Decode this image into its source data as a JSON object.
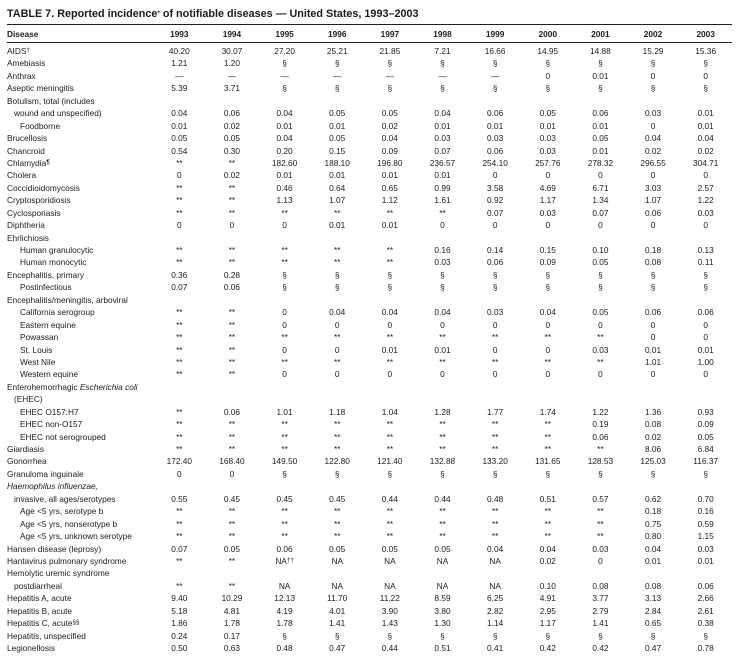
{
  "title": {
    "segments": [
      {
        "t": "TABLE 7. Reported incidence"
      },
      {
        "t": "*",
        "s": 1
      },
      {
        "t": " of notifiable diseases — United States, 1993–2003"
      }
    ]
  },
  "table": {
    "label_header": "Disease",
    "columns": [
      "1993",
      "1994",
      "1995",
      "1996",
      "1997",
      "1998",
      "1999",
      "2000",
      "2001",
      "2002",
      "2003"
    ],
    "rows": [
      {
        "segs": [
          {
            "t": "AIDS"
          },
          {
            "t": "†",
            "s": 1
          }
        ],
        "ind": 0,
        "cells": [
          "40.20",
          "30.07",
          "27.20",
          "25.21",
          "21.85",
          "7.21",
          "16.66",
          "14.95",
          "14.88",
          "15.29",
          "15.36"
        ]
      },
      {
        "label": "Amebiasis",
        "ind": 0,
        "cells": [
          "1.21",
          "1.20",
          "§",
          "§",
          "§",
          "§",
          "§",
          "§",
          "§",
          "§",
          "§"
        ]
      },
      {
        "label": "Anthrax",
        "ind": 0,
        "cells": [
          "—",
          "—",
          "—",
          "—",
          "—",
          "—",
          "—",
          "0",
          "0.01",
          "0",
          "0"
        ]
      },
      {
        "label": "Aseptic meningitis",
        "ind": 0,
        "cells": [
          "5.39",
          "3.71",
          "§",
          "§",
          "§",
          "§",
          "§",
          "§",
          "§",
          "§",
          "§"
        ]
      },
      {
        "label": "Botulism, total (includes",
        "ind": 0,
        "cells": null
      },
      {
        "label": "wound and unspecified)",
        "ind": 1,
        "cells": [
          "0.04",
          "0.06",
          "0.04",
          "0.05",
          "0.05",
          "0.04",
          "0.06",
          "0.05",
          "0.06",
          "0.03",
          "0.01"
        ]
      },
      {
        "label": "Foodborne",
        "ind": 2,
        "cells": [
          "0.01",
          "0.02",
          "0.01",
          "0.01",
          "0.02",
          "0.01",
          "0.01",
          "0.01",
          "0.01",
          "0",
          "0.01"
        ]
      },
      {
        "label": "Brucellosis",
        "ind": 0,
        "cells": [
          "0.05",
          "0.05",
          "0.04",
          "0.05",
          "0.04",
          "0.03",
          "0.03",
          "0.03",
          "0.05",
          "0.04",
          "0.04"
        ]
      },
      {
        "label": "Chancroid",
        "ind": 0,
        "cells": [
          "0.54",
          "0.30",
          "0.20",
          "0.15",
          "0.09",
          "0.07",
          "0.06",
          "0.03",
          "0.01",
          "0.02",
          "0.02"
        ]
      },
      {
        "segs": [
          {
            "t": "Chlamydia"
          },
          {
            "t": "¶",
            "s": 1,
            "b": 1
          }
        ],
        "ind": 0,
        "cells": [
          "**",
          "**",
          "182.60",
          "188.10",
          "196.80",
          "236.57",
          "254.10",
          "257.76",
          "278.32",
          "296.55",
          "304.71"
        ]
      },
      {
        "label": "Cholera",
        "ind": 0,
        "cells": [
          "0",
          "0.02",
          "0.01",
          "0.01",
          "0.01",
          "0.01",
          "0",
          "0",
          "0",
          "0",
          "0"
        ]
      },
      {
        "label": "Coccidioidomycosis",
        "ind": 0,
        "cells": [
          "**",
          "**",
          "0.46",
          "0.64",
          "0.65",
          "0.99",
          "3.58",
          "4.69",
          "6.71",
          "3.03",
          "2.57"
        ]
      },
      {
        "label": "Cryptosporidiosis",
        "ind": 0,
        "cells": [
          "**",
          "**",
          "1.13",
          "1.07",
          "1.12",
          "1.61",
          "0.92",
          "1.17",
          "1.34",
          "1.07",
          "1.22"
        ]
      },
      {
        "label": "Cyclosporiasis",
        "ind": 0,
        "cells": [
          "**",
          "**",
          "**",
          "**",
          "**",
          "**",
          "0.07",
          "0.03",
          "0.07",
          "0.06",
          "0.03"
        ]
      },
      {
        "label": "Diphtheria",
        "ind": 0,
        "cells": [
          "0",
          "0",
          "0",
          "0.01",
          "0.01",
          "0",
          "0",
          "0",
          "0",
          "0",
          "0"
        ]
      },
      {
        "label": "Ehrlichiosis",
        "ind": 0,
        "cells": null
      },
      {
        "label": "Human granulocytic",
        "ind": 2,
        "cells": [
          "**",
          "**",
          "**",
          "**",
          "**",
          "0.16",
          "0.14",
          "0.15",
          "0.10",
          "0.18",
          "0.13"
        ]
      },
      {
        "label": "Human monocytic",
        "ind": 2,
        "cells": [
          "**",
          "**",
          "**",
          "**",
          "**",
          "0.03",
          "0.06",
          "0.09",
          "0.05",
          "0.08",
          "0.11"
        ]
      },
      {
        "label": "Encephalitis, primary",
        "ind": 0,
        "cells": [
          "0.36",
          "0.28",
          "§",
          "§",
          "§",
          "§",
          "§",
          "§",
          "§",
          "§",
          "§"
        ]
      },
      {
        "label": "Postinfectious",
        "ind": 2,
        "cells": [
          "0.07",
          "0.06",
          "§",
          "§",
          "§",
          "§",
          "§",
          "§",
          "§",
          "§",
          "§"
        ]
      },
      {
        "label": "Encephalitis/meningitis, arboviral",
        "ind": 0,
        "cells": null
      },
      {
        "label": "California serogroup",
        "ind": 2,
        "cells": [
          "**",
          "**",
          "0",
          "0.04",
          "0.04",
          "0.04",
          "0.03",
          "0.04",
          "0.05",
          "0.06",
          "0.06"
        ]
      },
      {
        "label": "Eastern equine",
        "ind": 2,
        "cells": [
          "**",
          "**",
          "0",
          "0",
          "0",
          "0",
          "0",
          "0",
          "0",
          "0",
          "0"
        ]
      },
      {
        "label": "Powassan",
        "ind": 2,
        "cells": [
          "**",
          "**",
          "**",
          "**",
          "**",
          "**",
          "**",
          "**",
          "**",
          "0",
          "0"
        ]
      },
      {
        "label": "St. Louis",
        "ind": 2,
        "cells": [
          "**",
          "**",
          "0",
          "0",
          "0.01",
          "0.01",
          "0",
          "0",
          "0.03",
          "0.01",
          "0.01"
        ]
      },
      {
        "label": "West Nile",
        "ind": 2,
        "cells": [
          "**",
          "**",
          "**",
          "**",
          "**",
          "**",
          "**",
          "**",
          "**",
          "1.01",
          "1.00"
        ]
      },
      {
        "label": "Western equine",
        "ind": 2,
        "cells": [
          "**",
          "**",
          "0",
          "0",
          "0",
          "0",
          "0",
          "0",
          "0",
          "0",
          "0"
        ]
      },
      {
        "segs": [
          {
            "t": "Enterohemorrhagic "
          },
          {
            "t": "Escherichia coli",
            "i": 1
          }
        ],
        "ind": 0,
        "cells": null
      },
      {
        "label": "(EHEC)",
        "ind": 1,
        "cells": null
      },
      {
        "label": "EHEC O157:H7",
        "ind": 2,
        "cells": [
          "**",
          "0.06",
          "1.01",
          "1.18",
          "1.04",
          "1.28",
          "1.77",
          "1.74",
          "1.22",
          "1.36",
          "0.93"
        ]
      },
      {
        "label": "EHEC non-O157",
        "ind": 2,
        "cells": [
          "**",
          "**",
          "**",
          "**",
          "**",
          "**",
          "**",
          "**",
          "0.19",
          "0.08",
          "0.09"
        ]
      },
      {
        "label": "EHEC not serogrouped",
        "ind": 2,
        "cells": [
          "**",
          "**",
          "**",
          "**",
          "**",
          "**",
          "**",
          "**",
          "0.06",
          "0.02",
          "0.05"
        ]
      },
      {
        "label": "Giardiasis",
        "ind": 0,
        "cells": [
          "**",
          "**",
          "**",
          "**",
          "**",
          "**",
          "**",
          "**",
          "**",
          "8.06",
          "6.84"
        ]
      },
      {
        "label": "Gonorrhea",
        "ind": 0,
        "cells": [
          "172.40",
          "168.40",
          "149.50",
          "122.80",
          "121.40",
          "132.88",
          "133.20",
          "131.65",
          "128.53",
          "125.03",
          "116.37"
        ]
      },
      {
        "label": "Granuloma inguinale",
        "ind": 0,
        "cells": [
          "0",
          "0",
          "§",
          "§",
          "§",
          "§",
          "§",
          "§",
          "§",
          "§",
          "§"
        ]
      },
      {
        "segs": [
          {
            "t": "Haemophilus influenzae",
            "i": 1
          },
          {
            "t": ","
          }
        ],
        "ind": 0,
        "cells": null
      },
      {
        "label": "invasive, all ages/serotypes",
        "ind": 1,
        "cells": [
          "0.55",
          "0.45",
          "0.45",
          "0.45",
          "0.44",
          "0.44",
          "0.48",
          "0.51",
          "0.57",
          "0.62",
          "0.70"
        ]
      },
      {
        "label": "Age <5 yrs, serotype b",
        "ind": 2,
        "cells": [
          "**",
          "**",
          "**",
          "**",
          "**",
          "**",
          "**",
          "**",
          "**",
          "0.18",
          "0.16"
        ]
      },
      {
        "label": "Age <5 yrs, nonserotype b",
        "ind": 2,
        "cells": [
          "**",
          "**",
          "**",
          "**",
          "**",
          "**",
          "**",
          "**",
          "**",
          "0.75",
          "0.59"
        ]
      },
      {
        "label": "Age <5 yrs, unknown serotype",
        "ind": 2,
        "cells": [
          "**",
          "**",
          "**",
          "**",
          "**",
          "**",
          "**",
          "**",
          "**",
          "0.80",
          "1.15"
        ]
      },
      {
        "label": "Hansen disease (leprosy)",
        "ind": 0,
        "cells": [
          "0.07",
          "0.05",
          "0.06",
          "0.05",
          "0.05",
          "0.05",
          "0.04",
          "0.04",
          "0.03",
          "0.04",
          "0.03"
        ]
      },
      {
        "label": "Hantavirus pulmonary syndrome",
        "ind": 0,
        "cells": [
          "**",
          "**",
          {
            "t": "NA",
            "s": "††"
          },
          "NA",
          "NA",
          "NA",
          "NA",
          "0.02",
          "0",
          "0.01",
          "0.01"
        ]
      },
      {
        "label": "Hemolytic uremic syndrome",
        "ind": 0,
        "cells": null
      },
      {
        "label": "postdiarrheal",
        "ind": 1,
        "cells": [
          "**",
          "**",
          "NA",
          "NA",
          "NA",
          "NA",
          "NA",
          "0.10",
          "0.08",
          "0.08",
          "0.06"
        ]
      },
      {
        "label": "Hepatitis A, acute",
        "ind": 0,
        "cells": [
          "9.40",
          "10.29",
          "12.13",
          "11.70",
          "11.22",
          "8.59",
          "6.25",
          "4.91",
          "3.77",
          "3.13",
          "2.66"
        ]
      },
      {
        "label": "Hepatitis B, acute",
        "ind": 0,
        "cells": [
          "5.18",
          "4.81",
          "4.19",
          "4.01",
          "3.90",
          "3.80",
          "2.82",
          "2.95",
          "2.79",
          "2.84",
          "2.61"
        ]
      },
      {
        "segs": [
          {
            "t": "Hepatitis C, acute"
          },
          {
            "t": "§§",
            "s": 1
          }
        ],
        "ind": 0,
        "cells": [
          "1.86",
          "1.78",
          "1.78",
          "1.41",
          "1.43",
          "1.30",
          "1.14",
          "1.17",
          "1.41",
          "0.65",
          "0.38"
        ]
      },
      {
        "label": "Hepatitis, unspecified",
        "ind": 0,
        "cells": [
          "0.24",
          "0.17",
          "§",
          "§",
          "§",
          "§",
          "§",
          "§",
          "§",
          "§",
          "§"
        ]
      },
      {
        "label": "Legionellosis",
        "ind": 0,
        "cells": [
          "0.50",
          "0.63",
          "0.48",
          "0.47",
          "0.44",
          "0.51",
          "0.41",
          "0.42",
          "0.42",
          "0.47",
          "0.78"
        ]
      }
    ]
  }
}
